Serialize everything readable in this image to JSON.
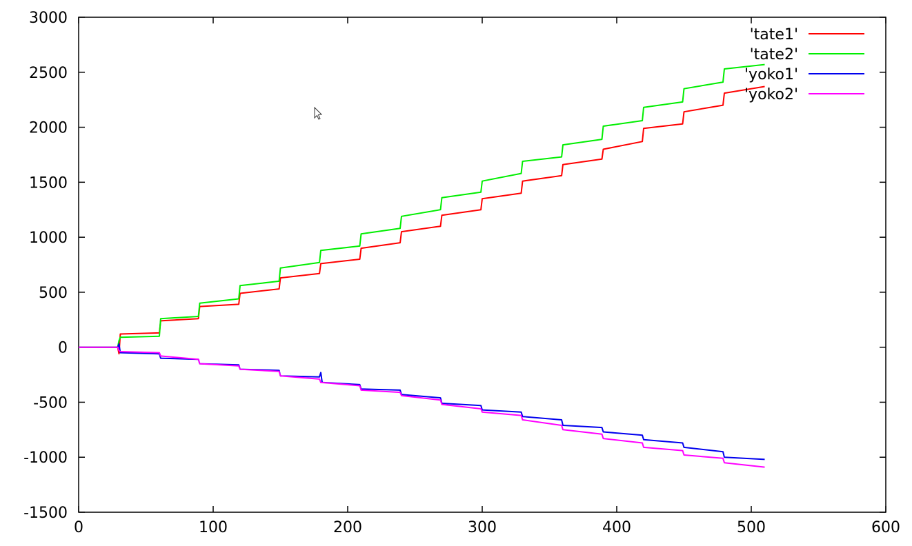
{
  "chart_data": {
    "type": "line",
    "xlim": [
      0,
      600
    ],
    "ylim": [
      -1500,
      3000
    ],
    "x_ticks": [
      0,
      100,
      200,
      300,
      400,
      500,
      600
    ],
    "y_ticks": [
      -1500,
      -1000,
      -500,
      0,
      500,
      1000,
      1500,
      2000,
      2500,
      3000
    ],
    "x_tick_labels": [
      "0",
      "100",
      "200",
      "300",
      "400",
      "500",
      "600"
    ],
    "y_tick_labels": [
      "-1500",
      "-1000",
      "-500",
      "0",
      "500",
      "1000",
      "1500",
      "2000",
      "2500",
      "3000"
    ],
    "grid": false,
    "legend_position": "top-right",
    "legend": [
      "'tate1'",
      "'tate2'",
      "'yoko1'",
      "'yoko2'"
    ],
    "series": [
      {
        "name": "'tate1'",
        "color": "#ff0000",
        "points": [
          [
            0,
            0
          ],
          [
            29,
            0
          ],
          [
            30,
            -60
          ],
          [
            31,
            120
          ],
          [
            60,
            130
          ],
          [
            61,
            240
          ],
          [
            89,
            260
          ],
          [
            90,
            370
          ],
          [
            119,
            390
          ],
          [
            120,
            490
          ],
          [
            149,
            530
          ],
          [
            150,
            630
          ],
          [
            179,
            670
          ],
          [
            180,
            760
          ],
          [
            209,
            800
          ],
          [
            210,
            900
          ],
          [
            239,
            950
          ],
          [
            240,
            1050
          ],
          [
            269,
            1100
          ],
          [
            270,
            1200
          ],
          [
            299,
            1250
          ],
          [
            300,
            1350
          ],
          [
            329,
            1400
          ],
          [
            330,
            1510
          ],
          [
            359,
            1560
          ],
          [
            360,
            1660
          ],
          [
            389,
            1710
          ],
          [
            390,
            1800
          ],
          [
            419,
            1870
          ],
          [
            420,
            1990
          ],
          [
            449,
            2030
          ],
          [
            450,
            2140
          ],
          [
            479,
            2200
          ],
          [
            480,
            2310
          ],
          [
            510,
            2370
          ]
        ]
      },
      {
        "name": "'tate2'",
        "color": "#00ee00",
        "points": [
          [
            0,
            0
          ],
          [
            29,
            0
          ],
          [
            30,
            60
          ],
          [
            31,
            90
          ],
          [
            60,
            100
          ],
          [
            61,
            260
          ],
          [
            89,
            280
          ],
          [
            90,
            400
          ],
          [
            119,
            440
          ],
          [
            120,
            560
          ],
          [
            149,
            600
          ],
          [
            150,
            720
          ],
          [
            179,
            770
          ],
          [
            180,
            880
          ],
          [
            209,
            920
          ],
          [
            210,
            1030
          ],
          [
            239,
            1080
          ],
          [
            240,
            1190
          ],
          [
            269,
            1250
          ],
          [
            270,
            1360
          ],
          [
            299,
            1410
          ],
          [
            300,
            1510
          ],
          [
            329,
            1580
          ],
          [
            330,
            1690
          ],
          [
            359,
            1730
          ],
          [
            360,
            1840
          ],
          [
            389,
            1890
          ],
          [
            390,
            2010
          ],
          [
            419,
            2060
          ],
          [
            420,
            2180
          ],
          [
            449,
            2230
          ],
          [
            450,
            2350
          ],
          [
            479,
            2410
          ],
          [
            480,
            2530
          ],
          [
            510,
            2570
          ]
        ]
      },
      {
        "name": "'yoko1'",
        "color": "#0000ee",
        "points": [
          [
            0,
            0
          ],
          [
            29,
            0
          ],
          [
            30,
            30
          ],
          [
            31,
            -50
          ],
          [
            60,
            -60
          ],
          [
            61,
            -100
          ],
          [
            89,
            -110
          ],
          [
            90,
            -150
          ],
          [
            119,
            -160
          ],
          [
            120,
            -200
          ],
          [
            149,
            -210
          ],
          [
            150,
            -260
          ],
          [
            179,
            -270
          ],
          [
            180,
            -230
          ],
          [
            181,
            -320
          ],
          [
            209,
            -340
          ],
          [
            210,
            -380
          ],
          [
            239,
            -390
          ],
          [
            240,
            -430
          ],
          [
            269,
            -460
          ],
          [
            270,
            -510
          ],
          [
            299,
            -530
          ],
          [
            300,
            -570
          ],
          [
            329,
            -590
          ],
          [
            330,
            -630
          ],
          [
            359,
            -660
          ],
          [
            360,
            -710
          ],
          [
            389,
            -730
          ],
          [
            390,
            -770
          ],
          [
            419,
            -800
          ],
          [
            420,
            -840
          ],
          [
            449,
            -870
          ],
          [
            450,
            -910
          ],
          [
            479,
            -950
          ],
          [
            480,
            -1000
          ],
          [
            510,
            -1020
          ]
        ]
      },
      {
        "name": "'yoko2'",
        "color": "#ff00ff",
        "points": [
          [
            0,
            0
          ],
          [
            29,
            0
          ],
          [
            30,
            -30
          ],
          [
            31,
            -40
          ],
          [
            60,
            -50
          ],
          [
            61,
            -80
          ],
          [
            89,
            -110
          ],
          [
            90,
            -150
          ],
          [
            119,
            -170
          ],
          [
            120,
            -200
          ],
          [
            149,
            -220
          ],
          [
            150,
            -260
          ],
          [
            179,
            -290
          ],
          [
            180,
            -320
          ],
          [
            209,
            -350
          ],
          [
            210,
            -390
          ],
          [
            239,
            -410
          ],
          [
            240,
            -440
          ],
          [
            269,
            -480
          ],
          [
            270,
            -520
          ],
          [
            299,
            -560
          ],
          [
            300,
            -590
          ],
          [
            329,
            -620
          ],
          [
            330,
            -660
          ],
          [
            359,
            -710
          ],
          [
            360,
            -750
          ],
          [
            389,
            -790
          ],
          [
            390,
            -830
          ],
          [
            419,
            -870
          ],
          [
            420,
            -910
          ],
          [
            449,
            -940
          ],
          [
            450,
            -980
          ],
          [
            479,
            -1010
          ],
          [
            480,
            -1050
          ],
          [
            510,
            -1090
          ]
        ]
      }
    ]
  },
  "pointer": {
    "icon": "mouse-pointer-icon"
  }
}
